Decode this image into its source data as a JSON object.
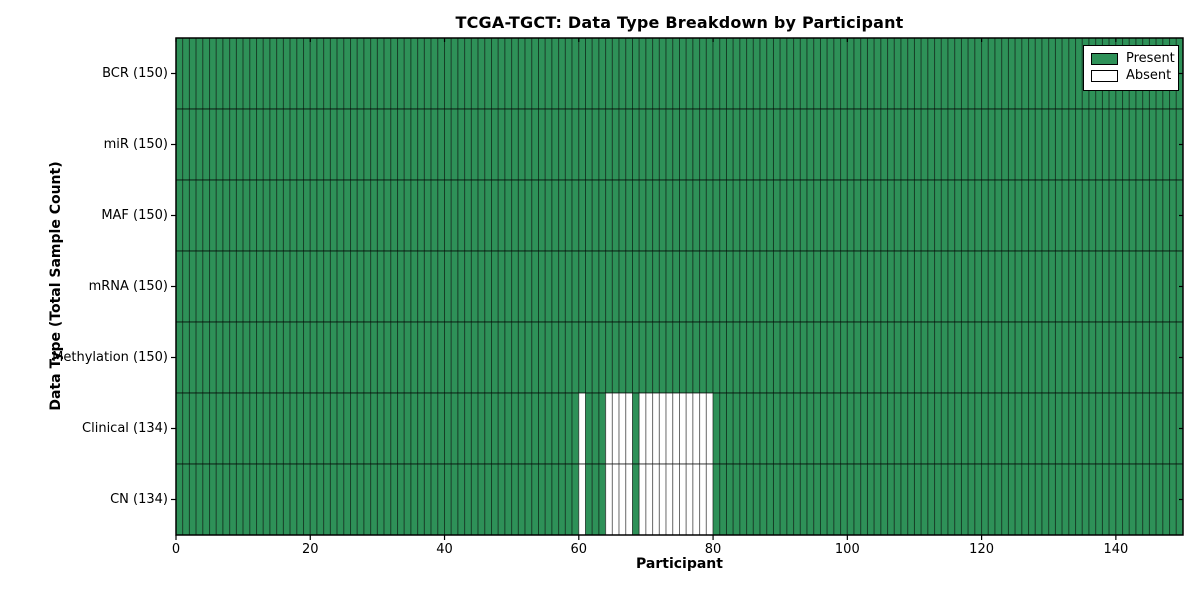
{
  "chart_data": {
    "type": "heatmap",
    "title": "TCGA-TGCT: Data Type Breakdown by Participant",
    "xlabel": "Participant",
    "ylabel": "Data Type (Total Sample Count)",
    "xlim": [
      0,
      150
    ],
    "n_participants": 150,
    "x_ticks": [
      0,
      20,
      40,
      60,
      80,
      100,
      120,
      140
    ],
    "rows": [
      {
        "label": "BCR",
        "total": 150,
        "absent": []
      },
      {
        "label": "miR",
        "total": 150,
        "absent": []
      },
      {
        "label": "MAF",
        "total": 150,
        "absent": []
      },
      {
        "label": "mRNA",
        "total": 150,
        "absent": []
      },
      {
        "label": "Methylation",
        "total": 150,
        "absent": []
      },
      {
        "label": "Clinical",
        "total": 134,
        "absent": [
          60,
          64,
          65,
          66,
          67,
          69,
          70,
          71,
          72,
          73,
          74,
          75,
          76,
          77,
          78,
          79
        ]
      },
      {
        "label": "CN",
        "total": 134,
        "absent": [
          60,
          64,
          65,
          66,
          67,
          69,
          70,
          71,
          72,
          73,
          74,
          75,
          76,
          77,
          78,
          79
        ]
      }
    ],
    "legend": {
      "present_label": "Present",
      "absent_label": "Absent",
      "position": "upper right"
    },
    "colors": {
      "present": "#2E9158",
      "absent": "#FFFFFF",
      "cell_edge": "#000000",
      "cell_edge_opacity": 0.45,
      "row_separator": "#000000",
      "row_separator_opacity": 0.5,
      "spine": "#000000",
      "background": "#FFFFFF"
    },
    "grid": true
  }
}
